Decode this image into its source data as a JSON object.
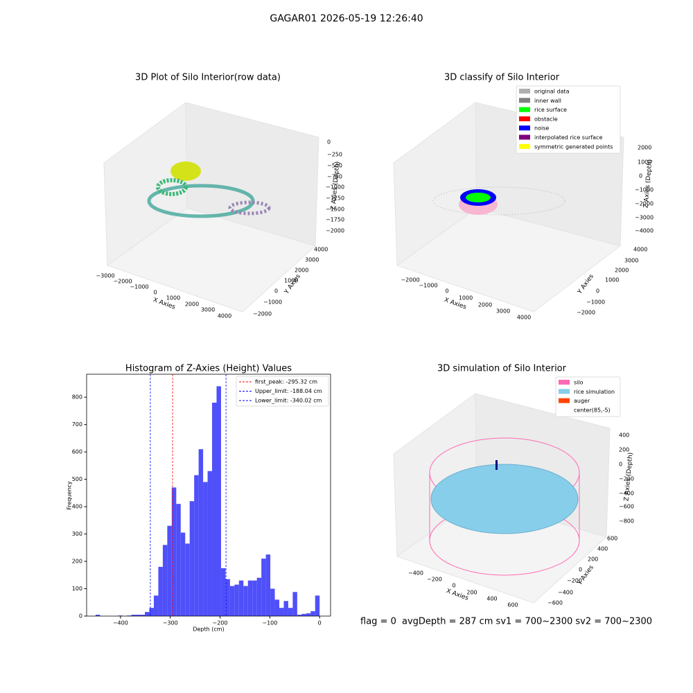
{
  "title": "GAGAR01 2026-05-19 12:26:40",
  "footer": [
    "flag = 0",
    "avgDepth = 287 cm  sv1 = 700~2300  sv2 = 700~2300"
  ],
  "chart_data": [
    {
      "type": "scatter3d",
      "title": "3D Plot of Silo Interior(row data)",
      "xlabel": "X Axies",
      "ylabel": "Y Axies",
      "zlabel": "Z Axies (Depth)",
      "xtick_labels": [
        "−3000",
        "−2000",
        "−1000",
        "0",
        "1000",
        "2000",
        "3000",
        "4000"
      ],
      "ytick_labels": [
        "−2000",
        "−1000",
        "0",
        "1000",
        "2000",
        "3000",
        "4000"
      ],
      "ztick_labels": [
        "0",
        "−250",
        "−500",
        "−750",
        "−1000",
        "−1250",
        "−1500",
        "−1750",
        "−2000"
      ]
    },
    {
      "type": "scatter3d",
      "title": "3D classify of Silo Interior",
      "xlabel": "X Axies",
      "ylabel": "Y Axies",
      "zlabel": "Z Axies (Depth)",
      "xtick_labels": [
        "−2000",
        "−1000",
        "0",
        "1000",
        "2000",
        "3000",
        "4000"
      ],
      "ytick_labels": [
        "−2000",
        "−1000",
        "0",
        "1000",
        "2000",
        "3000",
        "4000"
      ],
      "ztick_labels": [
        "2000",
        "1000",
        "0",
        "−1000",
        "−2000",
        "−3000",
        "−4000"
      ],
      "legend": [
        {
          "name": "original data",
          "color": "#b0b0b0"
        },
        {
          "name": "inner wall",
          "color": "#808080"
        },
        {
          "name": "rice surface",
          "color": "#00ff00"
        },
        {
          "name": "obstacle",
          "color": "#ff0000"
        },
        {
          "name": "noise",
          "color": "#0000ff"
        },
        {
          "name": "interpolated rice surface",
          "color": "#800080"
        },
        {
          "name": "symmetric generated points",
          "color": "#ffff00"
        }
      ]
    },
    {
      "type": "histogram",
      "title": "Histogram of Z-Axies (Height) Values",
      "xlabel": "Depth (cm)",
      "ylabel": "Frequency",
      "color": "#5050fa",
      "bins": [
        -450,
        -441,
        -432,
        -423,
        -414,
        -405,
        -396,
        -387,
        -378,
        -369,
        -360,
        -351,
        -342,
        -333,
        -324,
        -315,
        -306,
        -297,
        -288,
        -279,
        -270,
        -261,
        -252,
        -243,
        -234,
        -225,
        -216,
        -207,
        -198,
        -189,
        -180,
        -171,
        -162,
        -153,
        -144,
        -135,
        -126,
        -117,
        -108,
        -99,
        -90,
        -81,
        -72,
        -63,
        -54,
        -45,
        -36,
        -27,
        -18,
        -9,
        0
      ],
      "counts": [
        5,
        0,
        0,
        0,
        0,
        2,
        0,
        2,
        5,
        5,
        5,
        15,
        30,
        75,
        180,
        260,
        330,
        470,
        410,
        305,
        265,
        420,
        515,
        610,
        490,
        530,
        780,
        840,
        175,
        135,
        110,
        115,
        130,
        110,
        130,
        130,
        140,
        210,
        225,
        100,
        60,
        30,
        55,
        30,
        88,
        5,
        8,
        10,
        18,
        75
      ],
      "xlim": [
        -468,
        22
      ],
      "ylim": [
        0,
        884
      ],
      "xticks": [
        {
          "value": -400,
          "label": "−400"
        },
        {
          "value": -300,
          "label": "−300"
        },
        {
          "value": -200,
          "label": "−200"
        },
        {
          "value": -100,
          "label": "−100"
        },
        0
      ],
      "yticks": [
        0,
        100,
        200,
        300,
        400,
        500,
        600,
        700,
        800
      ],
      "vlines": [
        {
          "label": "first_peak: -295.32 cm",
          "value": -295.32,
          "color": "#ff0000"
        },
        {
          "label": "Upper_limit: -188.04 cm",
          "value": -188.04,
          "color": "#0000ff"
        },
        {
          "label": "Lower_limit: -340.02 cm",
          "value": -340.02,
          "color": "#0000ff"
        }
      ]
    },
    {
      "type": "surface3d",
      "title": "3D simulation of Silo Interior",
      "xlabel": "X Axies",
      "ylabel": "Y Axies",
      "zlabel": "Z Axies (Depth)",
      "xtick_labels": [
        "−400",
        "−200",
        "0",
        "200",
        "400",
        "600"
      ],
      "ytick_labels": [
        "−600",
        "−400",
        "−200",
        "0",
        "200",
        "400",
        "600"
      ],
      "ztick_labels": [
        "400",
        "200",
        "0",
        "−200",
        "−400",
        "−600",
        "−800"
      ],
      "legend": [
        {
          "name": "silo",
          "color": "#ff69b4"
        },
        {
          "name": "rice simulation",
          "color": "#87ceeb"
        },
        {
          "name": "auger",
          "color": "#ff4500"
        },
        {
          "name": "center(85,-5)",
          "color": "#ffffff"
        }
      ]
    }
  ]
}
